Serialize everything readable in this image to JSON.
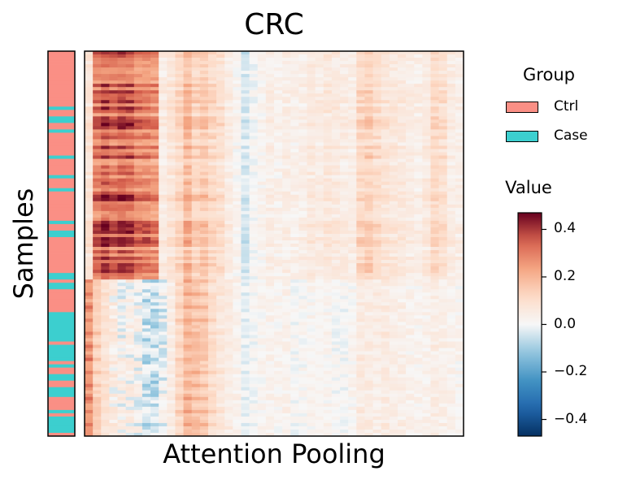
{
  "chart_data": {
    "type": "heatmap",
    "title": "CRC",
    "xlabel": "Attention Pooling",
    "ylabel": "Samples",
    "row_annotation": {
      "legend_title": "Group",
      "groups": [
        {
          "name": "Ctrl",
          "color": "#fa8f85"
        },
        {
          "name": "Case",
          "color": "#3ccfcf"
        }
      ]
    },
    "colorbar": {
      "title": "Value",
      "colormap": "RdBu_r",
      "vmin": -0.47,
      "vmax": 0.47,
      "ticks": [
        0.4,
        0.2,
        0.0,
        -0.2,
        -0.4
      ],
      "tick_labels": [
        "0.4",
        "0.2",
        "0.0",
        "−0.2",
        "−0.4"
      ]
    },
    "rows_ordered_ctrl_then_case": true,
    "column_profile_ctrl": [
      0.08,
      0.32,
      0.36,
      0.34,
      0.36,
      0.35,
      0.3,
      0.3,
      0.28,
      0.05,
      0.08,
      0.12,
      0.2,
      0.14,
      0.16,
      0.12,
      0.1,
      0.05,
      0.02,
      -0.04,
      0.0,
      0.02,
      0.04,
      0.03,
      0.04,
      0.03,
      0.04,
      0.06,
      0.05,
      0.07,
      0.06,
      0.05,
      0.04,
      0.12,
      0.14,
      0.11,
      0.08,
      0.07,
      0.06,
      0.05,
      0.04,
      0.06,
      0.12,
      0.1,
      0.05,
      0.04
    ],
    "column_profile_case": [
      0.3,
      0.16,
      0.1,
      0.08,
      0.05,
      0.06,
      0.04,
      -0.02,
      -0.03,
      0.02,
      0.04,
      0.14,
      0.22,
      0.2,
      0.18,
      0.12,
      0.08,
      0.06,
      0.03,
      -0.02,
      0.0,
      0.02,
      0.03,
      0.02,
      0.03,
      0.0,
      0.01,
      0.02,
      0.03,
      0.02,
      0.0,
      0.0,
      0.02,
      0.06,
      0.06,
      0.05,
      0.06,
      0.05,
      0.04,
      0.03,
      0.02,
      0.03,
      0.05,
      0.04,
      0.03,
      0.02
    ]
  }
}
